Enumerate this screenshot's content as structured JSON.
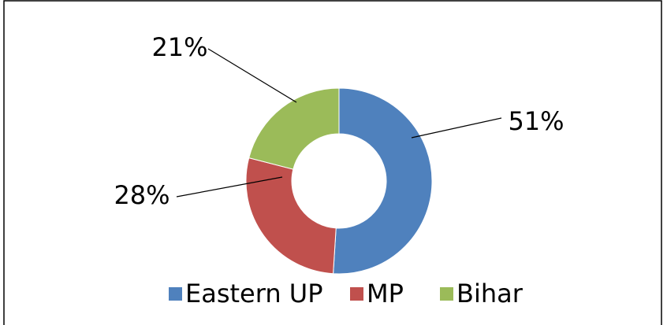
{
  "chart_data": {
    "type": "donut",
    "categories": [
      "Eastern UP",
      "MP",
      "Bihar"
    ],
    "values": [
      51,
      28,
      21
    ],
    "value_labels": [
      "51%",
      "28%",
      "21%"
    ],
    "colors": [
      "#4f81bd",
      "#c0504d",
      "#9bbb59"
    ],
    "legend": "bottom"
  }
}
